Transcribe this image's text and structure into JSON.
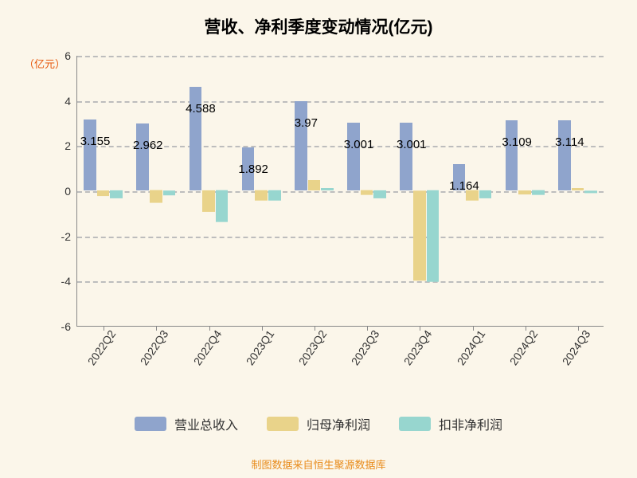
{
  "title": "营收、净利季度变动情况(亿元)",
  "ylabel": "（亿元）",
  "footer": "制图数据来自恒生聚源数据库",
  "chart": {
    "type": "bar",
    "background_color": "#fbf6ea",
    "grid_color": "#bdbdbd",
    "axis_color": "#888888",
    "title_fontsize": 21,
    "label_fontsize": 14,
    "ylim": [
      -6,
      6
    ],
    "ytick_step": 2,
    "yticks": [
      -6,
      -4,
      -2,
      0,
      2,
      4,
      6
    ],
    "categories": [
      "2022Q2",
      "2022Q3",
      "2022Q4",
      "2023Q1",
      "2023Q2",
      "2023Q3",
      "2023Q4",
      "2024Q1",
      "2024Q2",
      "2024Q3"
    ],
    "value_labels": [
      "3.155",
      "2.962",
      "4.588",
      "1.892",
      "3.97",
      "3.001",
      "3.001",
      "1.164",
      "3.109",
      "3.114"
    ],
    "bar_group_width": 0.75,
    "series": [
      {
        "name": "营业总收入",
        "color": "#8fa4cc",
        "values": [
          3.155,
          2.962,
          4.588,
          1.892,
          3.97,
          3.001,
          3.001,
          1.164,
          3.109,
          3.114
        ]
      },
      {
        "name": "归母净利润",
        "color": "#e9d38a",
        "values": [
          -0.25,
          -0.55,
          -0.95,
          -0.45,
          0.45,
          -0.2,
          -4.0,
          -0.45,
          -0.18,
          0.12
        ]
      },
      {
        "name": "扣非净利润",
        "color": "#97d6cf",
        "values": [
          -0.35,
          -0.22,
          -1.4,
          -0.45,
          0.12,
          -0.35,
          -4.05,
          -0.35,
          -0.2,
          -0.12
        ]
      }
    ]
  }
}
